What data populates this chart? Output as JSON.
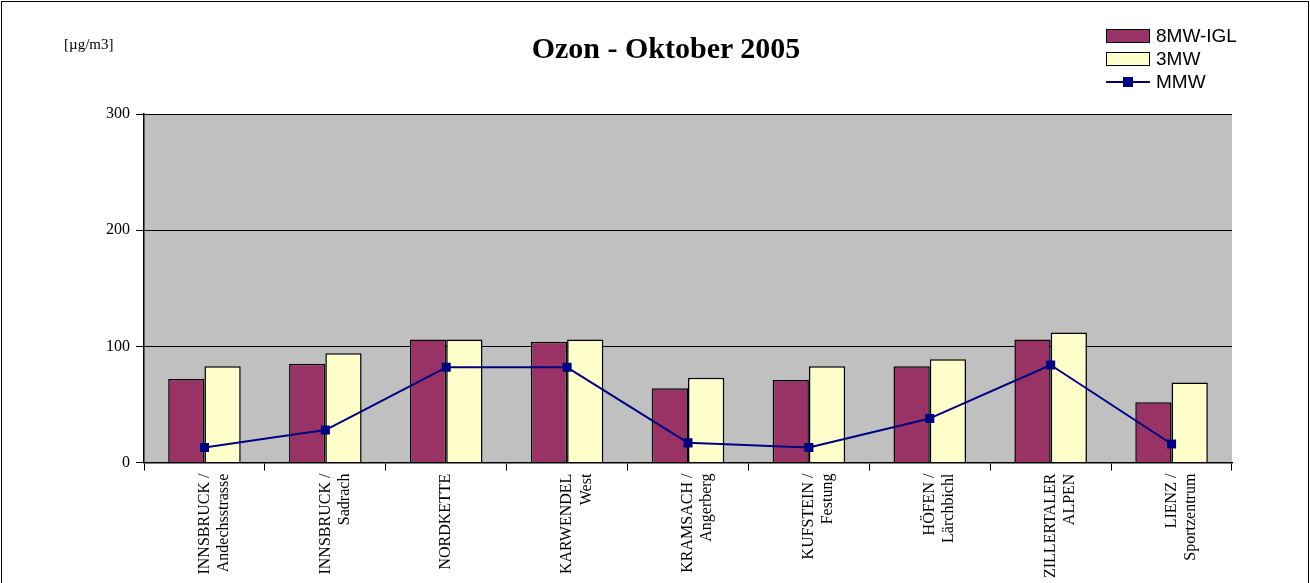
{
  "chart_data": {
    "type": "bar",
    "title": "Ozon - Oktober 2005",
    "ylabel": "[µg/m3]",
    "categories": [
      "INNSBRUCK /\nAndechsstrasse",
      "INNSBRUCK /\nSadrach",
      "NORDKETTE",
      "KARWENDEL\nWest",
      "KRAMSACH /\nAngerberg",
      "KUFSTEIN /\nFestung",
      "HÖFEN /\nLärchbichl",
      "ZILLERTALER\nALPEN",
      "LIENZ /\nSportzentrum"
    ],
    "series": [
      {
        "name": "8MW-IGL",
        "color": "#993366",
        "values": [
          72,
          85,
          106,
          104,
          64,
          71,
          83,
          106,
          52
        ]
      },
      {
        "name": "3MW",
        "color": "#ffffcc",
        "values": [
          83,
          94,
          106,
          106,
          73,
          83,
          89,
          112,
          69
        ]
      },
      {
        "name": "MMW",
        "type": "line",
        "color": "#000080",
        "values": [
          13,
          28,
          82,
          82,
          17,
          13,
          38,
          84,
          16
        ]
      }
    ],
    "ylim": [
      0,
      300
    ],
    "yticks": [
      0,
      100,
      200,
      300
    ],
    "grid": "y",
    "legend": "top right",
    "marker": "square",
    "line_style": "solid"
  }
}
